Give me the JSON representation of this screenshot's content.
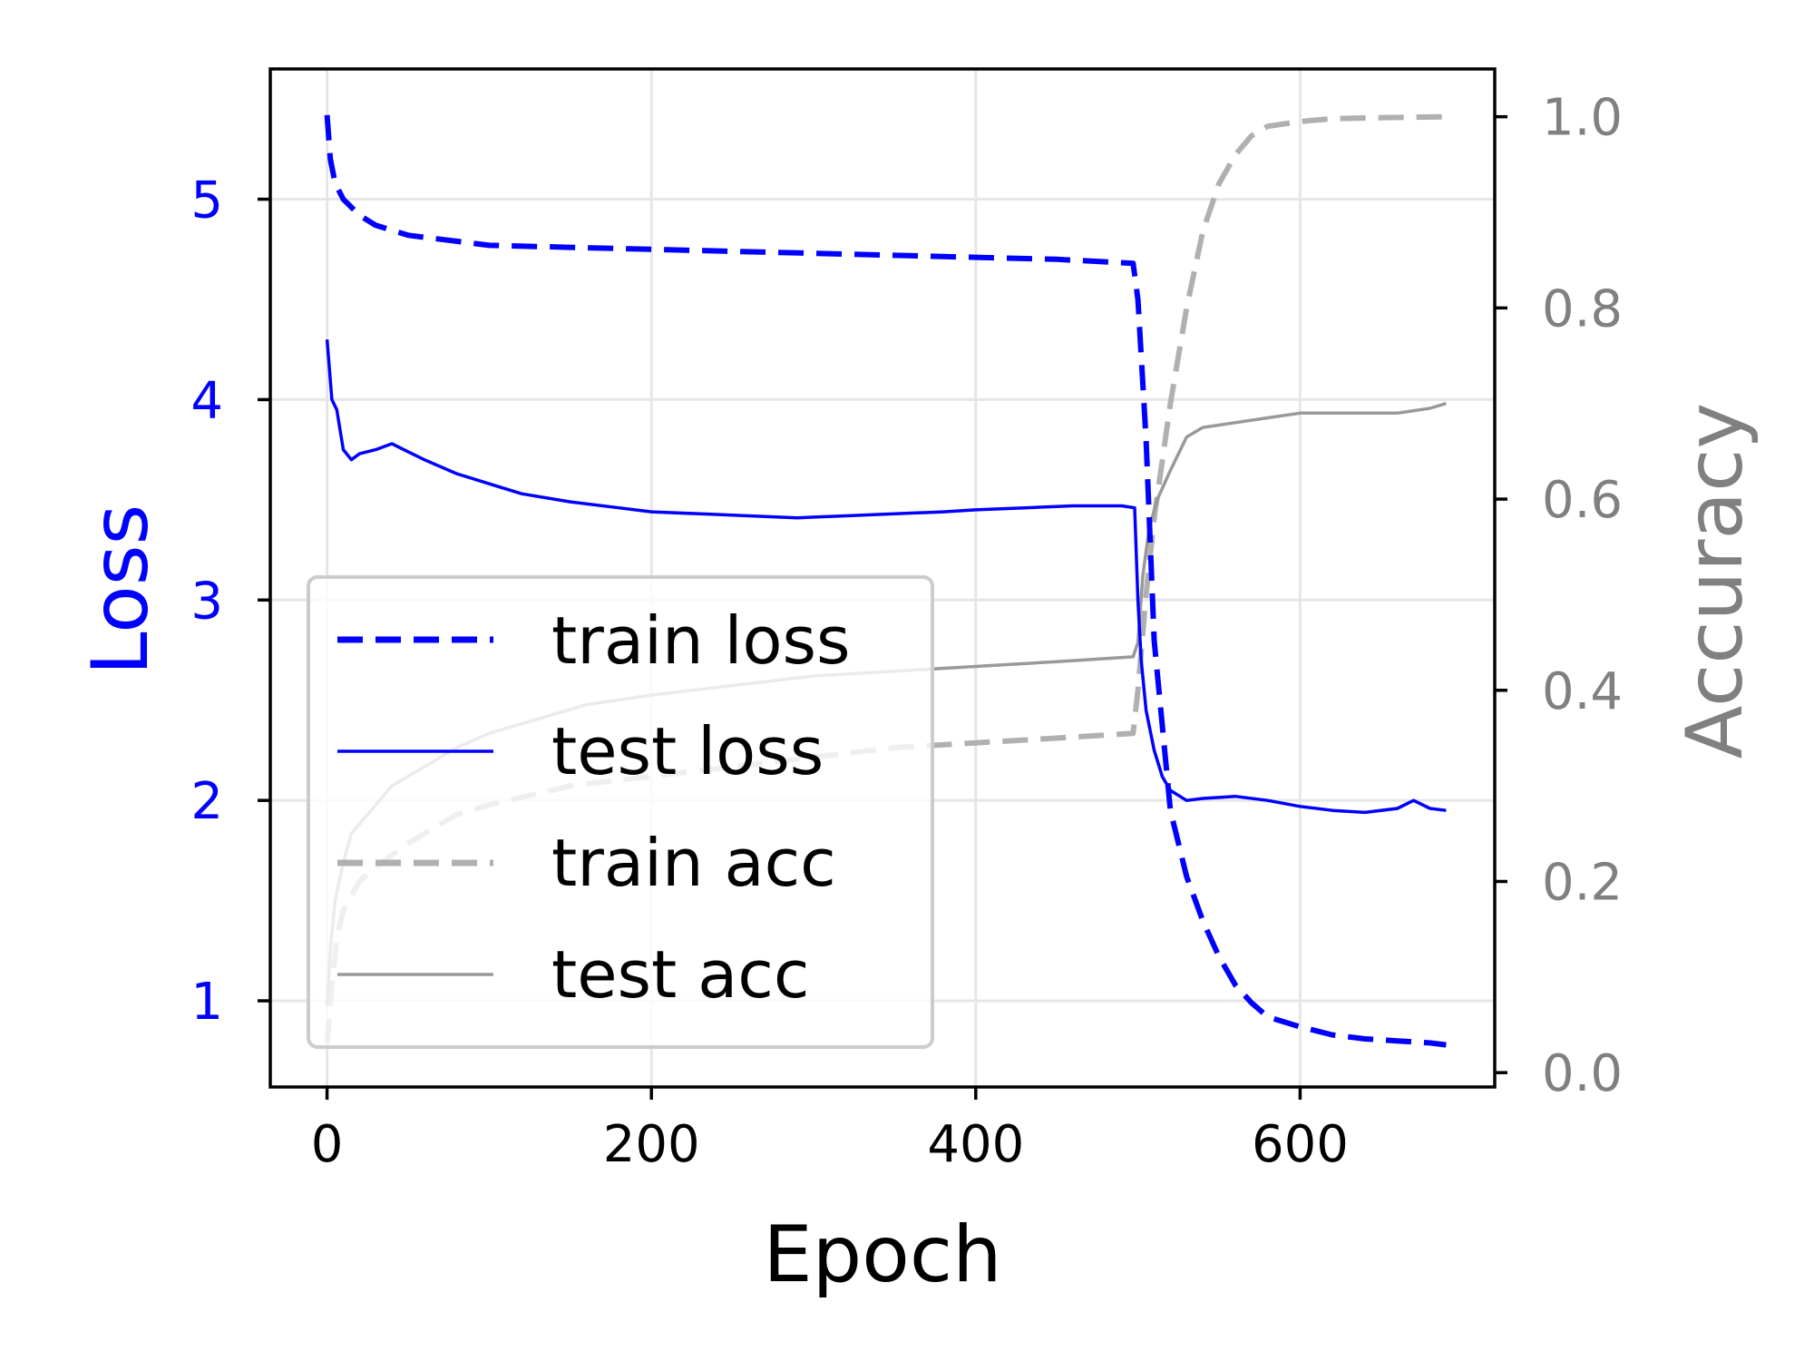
{
  "chart_data": {
    "type": "line",
    "xlabel": "Epoch",
    "ylabel_left": "Loss",
    "ylabel_right": "Accuracy",
    "xlim": [
      -35,
      720
    ],
    "ylim_left": [
      0.57,
      5.65
    ],
    "ylim_right": [
      -0.015,
      1.05
    ],
    "xticks": [
      "0",
      "200",
      "400",
      "600"
    ],
    "xtick_values": [
      0,
      200,
      400,
      600
    ],
    "yticks_left": [
      "1",
      "2",
      "3",
      "4",
      "5"
    ],
    "ytick_values_left": [
      1,
      2,
      3,
      4,
      5
    ],
    "yticks_right": [
      "0.0",
      "0.2",
      "0.4",
      "0.6",
      "0.8",
      "1.0"
    ],
    "ytick_values_right": [
      0.0,
      0.2,
      0.4,
      0.6,
      0.8,
      1.0
    ],
    "grid": true,
    "legend_position": "lower-left",
    "colors": {
      "loss_axis": "#0000ff",
      "acc_axis": "#808080",
      "train_acc": "#b0b0b0",
      "test_acc": "#999999"
    },
    "series": [
      {
        "name": "train loss",
        "axis": "left",
        "style": "dashed",
        "color": "#0000ff",
        "x": [
          0,
          2,
          5,
          10,
          20,
          30,
          50,
          80,
          100,
          150,
          200,
          250,
          300,
          350,
          400,
          450,
          497,
          500,
          505,
          510,
          520,
          530,
          540,
          550,
          560,
          570,
          580,
          600,
          620,
          640,
          660,
          680,
          690
        ],
        "y": [
          5.42,
          5.2,
          5.08,
          5.0,
          4.92,
          4.87,
          4.82,
          4.79,
          4.77,
          4.76,
          4.75,
          4.74,
          4.73,
          4.72,
          4.71,
          4.7,
          4.68,
          4.5,
          3.8,
          2.8,
          1.95,
          1.62,
          1.4,
          1.22,
          1.08,
          0.99,
          0.92,
          0.87,
          0.83,
          0.81,
          0.8,
          0.79,
          0.78
        ]
      },
      {
        "name": "test loss",
        "axis": "left",
        "style": "solid",
        "color": "#0000ff",
        "x": [
          0,
          3,
          6,
          10,
          15,
          20,
          30,
          40,
          50,
          60,
          80,
          100,
          120,
          150,
          180,
          200,
          230,
          260,
          290,
          320,
          350,
          380,
          400,
          430,
          460,
          490,
          498,
          500,
          502,
          505,
          510,
          515,
          520,
          530,
          540,
          560,
          580,
          600,
          620,
          640,
          660,
          670,
          680,
          690
        ],
        "y": [
          4.3,
          4.0,
          3.95,
          3.75,
          3.7,
          3.73,
          3.75,
          3.78,
          3.74,
          3.7,
          3.63,
          3.58,
          3.53,
          3.49,
          3.46,
          3.44,
          3.43,
          3.42,
          3.41,
          3.42,
          3.43,
          3.44,
          3.45,
          3.46,
          3.47,
          3.47,
          3.46,
          3.0,
          2.7,
          2.45,
          2.25,
          2.12,
          2.05,
          2.0,
          2.01,
          2.02,
          2.0,
          1.97,
          1.95,
          1.94,
          1.96,
          2.0,
          1.96,
          1.95
        ]
      },
      {
        "name": "train acc",
        "axis": "right",
        "style": "dashed",
        "color": "#b0b0b0",
        "x": [
          0,
          3,
          6,
          10,
          20,
          30,
          50,
          80,
          100,
          150,
          200,
          250,
          300,
          350,
          400,
          450,
          497,
          500,
          505,
          510,
          520,
          530,
          540,
          550,
          560,
          570,
          580,
          600,
          620,
          650,
          690
        ],
        "y": [
          0.03,
          0.09,
          0.14,
          0.17,
          0.2,
          0.215,
          0.24,
          0.27,
          0.28,
          0.3,
          0.31,
          0.32,
          0.33,
          0.34,
          0.345,
          0.35,
          0.355,
          0.4,
          0.5,
          0.58,
          0.7,
          0.8,
          0.88,
          0.93,
          0.96,
          0.98,
          0.99,
          0.995,
          0.998,
          0.999,
          1.0
        ]
      },
      {
        "name": "test acc",
        "axis": "right",
        "style": "solid",
        "color": "#999999",
        "x": [
          0,
          2,
          5,
          10,
          15,
          20,
          30,
          40,
          60,
          80,
          100,
          130,
          160,
          200,
          250,
          300,
          350,
          400,
          450,
          497,
          500,
          503,
          507,
          512,
          520,
          530,
          540,
          560,
          580,
          600,
          620,
          640,
          660,
          680,
          690
        ],
        "y": [
          0.07,
          0.13,
          0.18,
          0.22,
          0.25,
          0.26,
          0.28,
          0.3,
          0.32,
          0.34,
          0.355,
          0.37,
          0.385,
          0.395,
          0.405,
          0.415,
          0.42,
          0.425,
          0.43,
          0.435,
          0.45,
          0.52,
          0.57,
          0.6,
          0.63,
          0.665,
          0.675,
          0.68,
          0.685,
          0.69,
          0.69,
          0.69,
          0.69,
          0.695,
          0.7
        ]
      }
    ]
  }
}
